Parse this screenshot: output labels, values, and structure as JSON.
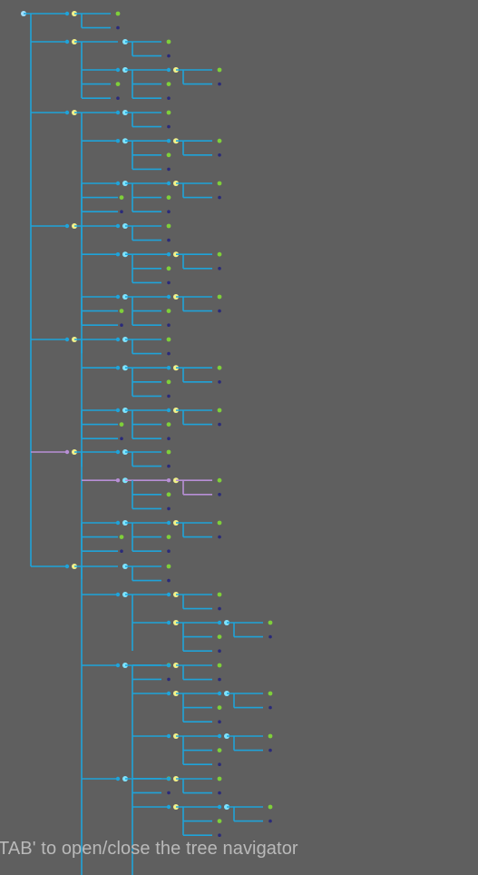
{
  "hint_text": "TAB' to open/close the tree navigator",
  "colors": {
    "background": "#5f5f5f",
    "line": "#1fa3d9",
    "highlight_line": "#b88fd6",
    "node_root": "#9fe0ff",
    "node_branch": "#f2f28a",
    "node_branch_blue": "#7fe4ff",
    "leaf_green": "#7fcf3a",
    "leaf_dark": "#2a2a7a",
    "hint_text": "#b9b9b9"
  },
  "icons": {
    "branch_node": "branch-node-icon",
    "leaf_node": "leaf-node-icon"
  }
}
